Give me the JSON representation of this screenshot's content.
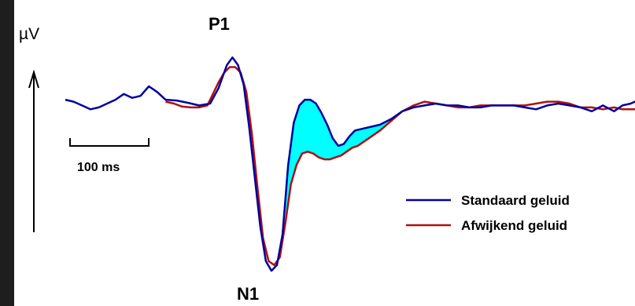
{
  "chart_data": {
    "type": "line",
    "title": "",
    "xlabel": "",
    "ylabel": "µV",
    "axis_arrow": "up",
    "scale_bar": {
      "label": "100 ms",
      "duration_ms": 100
    },
    "peaks": [
      {
        "label": "P1",
        "position": "top"
      },
      {
        "label": "N1",
        "position": "bottom"
      }
    ],
    "legend": {
      "placement": "bottom-right"
    },
    "shaded_difference": {
      "color": "#00ffff",
      "between": [
        "Standaard geluid",
        "Afwijkend geluid"
      ]
    },
    "series": [
      {
        "name": "Standaard geluid",
        "color": "#0000a0",
        "values": [
          [
            0,
            0.1
          ],
          [
            6,
            0.05
          ],
          [
            12,
            -0.05
          ],
          [
            18,
            -0.15
          ],
          [
            24,
            -0.1
          ],
          [
            30,
            0.0
          ],
          [
            36,
            0.1
          ],
          [
            42,
            0.25
          ],
          [
            48,
            0.15
          ],
          [
            54,
            0.2
          ],
          [
            60,
            0.45
          ],
          [
            66,
            0.3
          ],
          [
            72,
            0.1
          ],
          [
            80,
            0.08
          ],
          [
            88,
            0.02
          ],
          [
            96,
            -0.05
          ],
          [
            104,
            0.0
          ],
          [
            110,
            0.4
          ],
          [
            116,
            1.0
          ],
          [
            120,
            1.2
          ],
          [
            124,
            1.0
          ],
          [
            128,
            0.5
          ],
          [
            132,
            -0.6
          ],
          [
            136,
            -1.9
          ],
          [
            140,
            -3.2
          ],
          [
            144,
            -4.1
          ],
          [
            148,
            -4.35
          ],
          [
            152,
            -4.2
          ],
          [
            156,
            -3.4
          ],
          [
            160,
            -1.6
          ],
          [
            164,
            -0.5
          ],
          [
            168,
            -0.05
          ],
          [
            172,
            0.1
          ],
          [
            176,
            0.1
          ],
          [
            180,
            0.0
          ],
          [
            184,
            -0.25
          ],
          [
            188,
            -0.55
          ],
          [
            192,
            -0.9
          ],
          [
            196,
            -1.1
          ],
          [
            200,
            -1.05
          ],
          [
            204,
            -0.85
          ],
          [
            208,
            -0.7
          ],
          [
            214,
            -0.65
          ],
          [
            220,
            -0.6
          ],
          [
            226,
            -0.55
          ],
          [
            234,
            -0.4
          ],
          [
            242,
            -0.2
          ],
          [
            250,
            -0.1
          ],
          [
            258,
            -0.05
          ],
          [
            266,
            0.0
          ],
          [
            274,
            -0.05
          ],
          [
            282,
            -0.05
          ],
          [
            290,
            -0.1
          ],
          [
            298,
            -0.1
          ],
          [
            306,
            -0.05
          ],
          [
            314,
            -0.05
          ],
          [
            322,
            -0.05
          ],
          [
            330,
            -0.1
          ],
          [
            338,
            -0.15
          ],
          [
            346,
            -0.05
          ],
          [
            354,
            0.0
          ],
          [
            362,
            -0.05
          ],
          [
            370,
            -0.1
          ],
          [
            378,
            -0.2
          ],
          [
            386,
            -0.05
          ],
          [
            394,
            -0.2
          ],
          [
            400,
            -0.05
          ],
          [
            406,
            0.0
          ],
          [
            412,
            0.1
          ]
        ]
      },
      {
        "name": "Afwijkend geluid",
        "color": "#b01010",
        "values": [
          [
            72,
            0.05
          ],
          [
            78,
            0.0
          ],
          [
            84,
            -0.08
          ],
          [
            90,
            -0.1
          ],
          [
            96,
            -0.1
          ],
          [
            102,
            -0.05
          ],
          [
            106,
            0.25
          ],
          [
            110,
            0.55
          ],
          [
            114,
            0.8
          ],
          [
            118,
            0.95
          ],
          [
            122,
            0.95
          ],
          [
            126,
            0.8
          ],
          [
            130,
            0.3
          ],
          [
            134,
            -0.8
          ],
          [
            138,
            -2.2
          ],
          [
            142,
            -3.5
          ],
          [
            146,
            -4.1
          ],
          [
            150,
            -4.2
          ],
          [
            154,
            -4.0
          ],
          [
            158,
            -3.1
          ],
          [
            162,
            -2.1
          ],
          [
            166,
            -1.6
          ],
          [
            170,
            -1.3
          ],
          [
            174,
            -1.25
          ],
          [
            178,
            -1.3
          ],
          [
            182,
            -1.4
          ],
          [
            186,
            -1.45
          ],
          [
            190,
            -1.45
          ],
          [
            194,
            -1.4
          ],
          [
            198,
            -1.35
          ],
          [
            202,
            -1.25
          ],
          [
            206,
            -1.15
          ],
          [
            210,
            -1.1
          ],
          [
            214,
            -1.0
          ],
          [
            220,
            -0.85
          ],
          [
            226,
            -0.7
          ],
          [
            234,
            -0.45
          ],
          [
            242,
            -0.2
          ],
          [
            250,
            -0.05
          ],
          [
            258,
            0.05
          ],
          [
            266,
            0.0
          ],
          [
            274,
            -0.05
          ],
          [
            282,
            -0.1
          ],
          [
            290,
            -0.1
          ],
          [
            298,
            -0.05
          ],
          [
            306,
            -0.05
          ],
          [
            314,
            -0.05
          ],
          [
            322,
            -0.05
          ],
          [
            330,
            -0.05
          ],
          [
            338,
            0.0
          ],
          [
            346,
            0.05
          ],
          [
            354,
            0.05
          ],
          [
            362,
            0.0
          ],
          [
            370,
            -0.1
          ],
          [
            378,
            -0.1
          ],
          [
            386,
            -0.15
          ],
          [
            394,
            -0.1
          ],
          [
            400,
            -0.15
          ],
          [
            406,
            -0.15
          ],
          [
            412,
            -0.15
          ]
        ]
      }
    ]
  }
}
